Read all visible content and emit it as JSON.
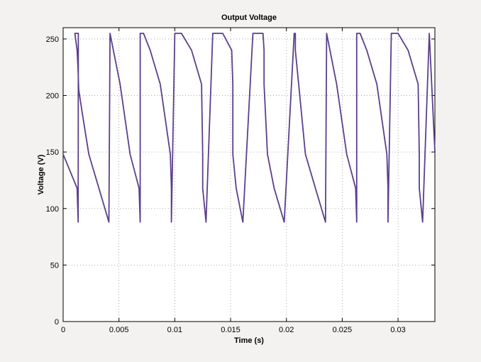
{
  "chart_data": {
    "type": "line",
    "title": "Output Voltage",
    "xlabel": "Time (s)",
    "ylabel": "Voltage (V)",
    "xlim": [
      0,
      0.0333
    ],
    "ylim": [
      0,
      260
    ],
    "xticks": [
      0,
      0.005,
      0.01,
      0.015,
      0.02,
      0.025,
      0.03
    ],
    "xtick_labels": [
      "0",
      "0.005",
      "0.01",
      "0.015",
      "0.02",
      "0.025",
      "0.03"
    ],
    "yticks": [
      0,
      50,
      100,
      150,
      200,
      250
    ],
    "ytick_labels": [
      "0",
      "50",
      "100",
      "150",
      "200",
      "250"
    ],
    "grid": true,
    "line_color": "#5b3f8c",
    "background": "#f3f2f1",
    "plot_background": "#ffffff",
    "series": [
      {
        "x": [
          0,
          0.00125,
          0.00135,
          0.00136,
          0.00105,
          0.00125,
          0.0013,
          0.00135,
          0.00138,
          0.0014,
          0.0017,
          0.0023,
          0.0032,
          0.0041,
          0.0042,
          0.0042,
          0.0045,
          0.0051,
          0.006,
          0.0068,
          0.0069,
          0.0069,
          0.0072,
          0.0078,
          0.0087,
          0.0096,
          0.0097,
          0.0097,
          0.01,
          0.0106,
          0.0115,
          0.0124,
          0.0125,
          0.0125,
          0.0128,
          0.0134,
          0.0143,
          0.0151,
          0.0152,
          0.0152,
          0.0155,
          0.0161,
          0.017,
          0.0179,
          0.018,
          0.018,
          0.0183,
          0.0189,
          0.0198,
          0.0207,
          0.0208,
          0.0208,
          0.0211,
          0.0217,
          0.0226,
          0.0235,
          0.0236,
          0.0236,
          0.0239,
          0.0245,
          0.0254,
          0.0262,
          0.0263,
          0.0263,
          0.0266,
          0.0272,
          0.0281,
          0.029,
          0.0291,
          0.0291,
          0.0294,
          0.03,
          0.0309,
          0.0318,
          0.0319,
          0.0319,
          0.0322,
          0.0328,
          0.0333
        ],
        "y": [
          148,
          118,
          88,
          255,
          255,
          240,
          230,
          220,
          210,
          205,
          185,
          148,
          118,
          88,
          255,
          255,
          240,
          210,
          148,
          118,
          88,
          255,
          255,
          240,
          210,
          148,
          118,
          88,
          255,
          255,
          240,
          210,
          148,
          118,
          88,
          255,
          255,
          240,
          210,
          148,
          118,
          88,
          255,
          255,
          240,
          210,
          148,
          118,
          88,
          255,
          255,
          240,
          210,
          148,
          118,
          88,
          255,
          255,
          240,
          210,
          148,
          118,
          88,
          255,
          255,
          240,
          210,
          148,
          118,
          88,
          255,
          255,
          240,
          210,
          148,
          118,
          88,
          255,
          150
        ]
      }
    ]
  }
}
